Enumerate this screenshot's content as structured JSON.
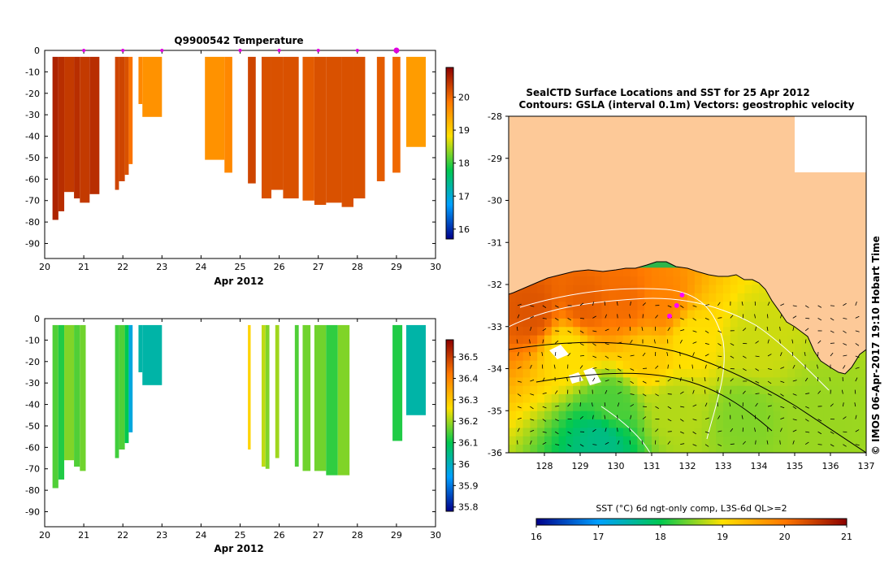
{
  "figure": {
    "top_title": "Q9900542  Temperature",
    "month_label": "Apr 2012",
    "map_title_line1": "SealCTD Surface Locations and SST for 25 Apr 2012",
    "map_title_line2": "Contours: GSLA (interval 0.1m) Vectors: geostrophic velocity",
    "side_stamp": "© IMOS 06-Apr-2017 19:10 Hobart Time",
    "colorbar_label": "SST (°C) 6d ngt-only comp, L3S-6d QL>=2"
  },
  "chart_data": [
    {
      "type": "heatmap",
      "name": "temperature-profiles",
      "title": "Q9900542  Temperature",
      "xlabel": "Apr 2012",
      "ylabel": "",
      "xlim": [
        20,
        30
      ],
      "ylim": [
        -97,
        0
      ],
      "x_ticks": [
        "20",
        "21",
        "22",
        "23",
        "24",
        "25",
        "26",
        "27",
        "28",
        "29",
        "30"
      ],
      "y_ticks": [
        "0",
        "-10",
        "-20",
        "-30",
        "-40",
        "-50",
        "-60",
        "-70",
        "-80",
        "-90"
      ],
      "profile_markers_x": [
        21.0,
        22.0,
        23.0,
        25.0,
        26.0,
        27.0,
        28.0,
        29.0
      ],
      "profiles": [
        {
          "x0": 20.2,
          "x1": 20.35,
          "depth": -79,
          "value": 20.6
        },
        {
          "x0": 20.35,
          "x1": 20.5,
          "depth": -75,
          "value": 20.5
        },
        {
          "x0": 20.5,
          "x1": 20.75,
          "depth": -66,
          "value": 20.4
        },
        {
          "x0": 20.75,
          "x1": 20.9,
          "depth": -69,
          "value": 20.5
        },
        {
          "x0": 20.9,
          "x1": 21.15,
          "depth": -71,
          "value": 20.4
        },
        {
          "x0": 21.15,
          "x1": 21.4,
          "depth": -67,
          "value": 20.5
        },
        {
          "x0": 21.8,
          "x1": 21.9,
          "depth": -65,
          "value": 20.3
        },
        {
          "x0": 21.9,
          "x1": 22.05,
          "depth": -61,
          "value": 20.3
        },
        {
          "x0": 22.05,
          "x1": 22.15,
          "depth": -58,
          "value": 20.2
        },
        {
          "x0": 22.15,
          "x1": 22.25,
          "depth": -53,
          "value": 19.9
        },
        {
          "x0": 22.4,
          "x1": 22.5,
          "depth": -25,
          "value": 19.7
        },
        {
          "x0": 22.5,
          "x1": 23.0,
          "depth": -31,
          "value": 19.6
        },
        {
          "x0": 24.1,
          "x1": 24.6,
          "depth": -51,
          "value": 19.6
        },
        {
          "x0": 24.6,
          "x1": 24.8,
          "depth": -57,
          "value": 19.7
        },
        {
          "x0": 25.2,
          "x1": 25.4,
          "depth": -62,
          "value": 20.3
        },
        {
          "x0": 25.55,
          "x1": 25.8,
          "depth": -69,
          "value": 20.2
        },
        {
          "x0": 25.8,
          "x1": 26.1,
          "depth": -65,
          "value": 20.2
        },
        {
          "x0": 26.1,
          "x1": 26.5,
          "depth": -69,
          "value": 20.2
        },
        {
          "x0": 26.6,
          "x1": 26.9,
          "depth": -70,
          "value": 20.1
        },
        {
          "x0": 26.9,
          "x1": 27.2,
          "depth": -72,
          "value": 20.2
        },
        {
          "x0": 27.2,
          "x1": 27.6,
          "depth": -71,
          "value": 20.2
        },
        {
          "x0": 27.6,
          "x1": 27.9,
          "depth": -73,
          "value": 20.2
        },
        {
          "x0": 27.9,
          "x1": 28.2,
          "depth": -69,
          "value": 20.2
        },
        {
          "x0": 28.5,
          "x1": 28.7,
          "depth": -61,
          "value": 20.1
        },
        {
          "x0": 28.9,
          "x1": 29.1,
          "depth": -57,
          "value": 20.0
        },
        {
          "x0": 29.25,
          "x1": 29.75,
          "depth": -45,
          "value": 19.5
        }
      ],
      "colorbar": {
        "min": 15.7,
        "max": 20.9,
        "ticks": [
          "16",
          "17",
          "18",
          "19",
          "20"
        ]
      }
    },
    {
      "type": "heatmap",
      "name": "salinity-profiles",
      "title": "",
      "xlabel": "Apr 2012",
      "ylabel": "",
      "xlim": [
        20,
        30
      ],
      "ylim": [
        -97,
        0
      ],
      "x_ticks": [
        "20",
        "21",
        "22",
        "23",
        "24",
        "25",
        "26",
        "27",
        "28",
        "29",
        "30"
      ],
      "y_ticks": [
        "0",
        "-10",
        "-20",
        "-30",
        "-40",
        "-50",
        "-60",
        "-70",
        "-80",
        "-90"
      ],
      "profiles": [
        {
          "x0": 20.2,
          "x1": 20.35,
          "depth": -79,
          "value": 36.15
        },
        {
          "x0": 20.35,
          "x1": 20.5,
          "depth": -75,
          "value": 36.12
        },
        {
          "x0": 20.5,
          "x1": 20.75,
          "depth": -66,
          "value": 36.18
        },
        {
          "x0": 20.75,
          "x1": 20.9,
          "depth": -69,
          "value": 36.15
        },
        {
          "x0": 20.9,
          "x1": 21.05,
          "depth": -71,
          "value": 36.17
        },
        {
          "x0": 21.8,
          "x1": 21.9,
          "depth": -65,
          "value": 36.14
        },
        {
          "x0": 21.9,
          "x1": 22.05,
          "depth": -61,
          "value": 36.15
        },
        {
          "x0": 22.05,
          "x1": 22.15,
          "depth": -58,
          "value": 36.1
        },
        {
          "x0": 22.15,
          "x1": 22.25,
          "depth": -53,
          "value": 35.97
        },
        {
          "x0": 22.4,
          "x1": 22.5,
          "depth": -25,
          "value": 36.02
        },
        {
          "x0": 22.5,
          "x1": 23.0,
          "depth": -31,
          "value": 36.02
        },
        {
          "x0": 25.2,
          "x1": 25.27,
          "depth": -61,
          "value": 36.28
        },
        {
          "x0": 25.55,
          "x1": 25.65,
          "depth": -69,
          "value": 36.22
        },
        {
          "x0": 25.65,
          "x1": 25.75,
          "depth": -70,
          "value": 36.18
        },
        {
          "x0": 25.9,
          "x1": 26.0,
          "depth": -65,
          "value": 36.2
        },
        {
          "x0": 26.4,
          "x1": 26.5,
          "depth": -69,
          "value": 36.15
        },
        {
          "x0": 26.6,
          "x1": 26.8,
          "depth": -71,
          "value": 36.17
        },
        {
          "x0": 26.9,
          "x1": 27.2,
          "depth": -71,
          "value": 36.17
        },
        {
          "x0": 27.2,
          "x1": 27.5,
          "depth": -73,
          "value": 36.13
        },
        {
          "x0": 27.5,
          "x1": 27.8,
          "depth": -73,
          "value": 36.18
        },
        {
          "x0": 28.9,
          "x1": 29.15,
          "depth": -57,
          "value": 36.12
        },
        {
          "x0": 29.25,
          "x1": 29.75,
          "depth": -45,
          "value": 36.02
        }
      ],
      "colorbar": {
        "min": 35.78,
        "max": 36.58,
        "ticks": [
          "35.8",
          "35.9",
          "36",
          "36.1",
          "36.2",
          "36.3",
          "36.4",
          "36.5"
        ]
      }
    },
    {
      "type": "heatmap",
      "name": "sst-map",
      "title": "SealCTD Surface Locations and SST for 25 Apr 2012",
      "subtitle": "Contours: GSLA (interval 0.1m) Vectors: geostrophic velocity",
      "xlim": [
        127,
        137
      ],
      "ylim": [
        -36,
        -28
      ],
      "x_ticks": [
        "128",
        "129",
        "130",
        "131",
        "132",
        "133",
        "134",
        "135",
        "136",
        "137"
      ],
      "y_ticks": [
        "-28",
        "-29",
        "-30",
        "-31",
        "-32",
        "-33",
        "-34",
        "-35",
        "-36"
      ],
      "sst_zones": [
        {
          "lon": 127.6,
          "lat": -32.8,
          "sst": 20.3
        },
        {
          "lon": 129.0,
          "lat": -32.6,
          "sst": 20.2
        },
        {
          "lon": 130.2,
          "lat": -32.5,
          "sst": 20.1
        },
        {
          "lon": 131.2,
          "lat": -32.6,
          "sst": 19.9
        },
        {
          "lon": 128.5,
          "lat": -33.6,
          "sst": 19.0
        },
        {
          "lon": 130.8,
          "lat": -33.8,
          "sst": 19.2
        },
        {
          "lon": 132.0,
          "lat": -33.4,
          "sst": 19.0
        },
        {
          "lon": 133.8,
          "lat": -33.6,
          "sst": 18.8
        },
        {
          "lon": 129.8,
          "lat": -35.0,
          "sst": 18.3
        },
        {
          "lon": 131.5,
          "lat": -35.0,
          "sst": 18.7
        },
        {
          "lon": 133.5,
          "lat": -35.2,
          "sst": 18.5
        },
        {
          "lon": 135.5,
          "lat": -35.3,
          "sst": 18.6
        },
        {
          "lon": 129.5,
          "lat": -35.8,
          "sst": 17.7
        }
      ],
      "ctd_locations": [
        {
          "lon": 131.85,
          "lat": -32.25
        },
        {
          "lon": 131.7,
          "lat": -32.5
        },
        {
          "lon": 131.5,
          "lat": -32.75
        }
      ],
      "colorbar": {
        "min": 16,
        "max": 21,
        "ticks": [
          "16",
          "17",
          "18",
          "19",
          "20",
          "21"
        ],
        "label": "SST (°C) 6d ngt-only comp, L3S-6d QL>=2"
      }
    }
  ]
}
